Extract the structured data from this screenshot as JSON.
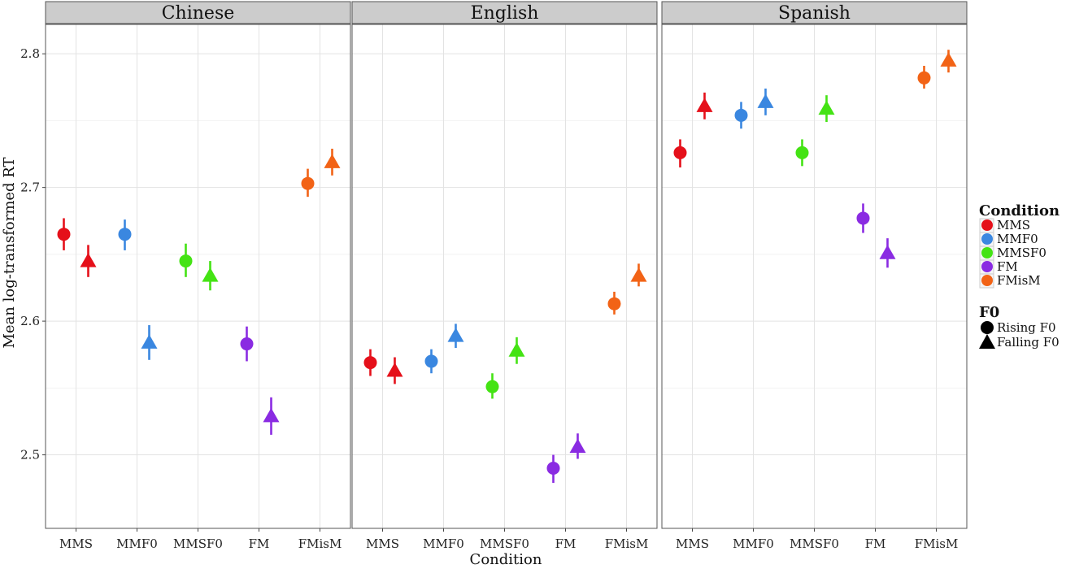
{
  "chart_data": {
    "type": "scatter",
    "xlabel": "Condition",
    "ylabel": "Mean log-transformed RT",
    "ylim": [
      2.445,
      2.822
    ],
    "yticks": [
      2.5,
      2.6,
      2.7,
      2.8
    ],
    "ytick_labels": [
      "2.5",
      "2.6",
      "2.7",
      "2.8"
    ],
    "categories": [
      "MMS",
      "MMF0",
      "MMSF0",
      "FM",
      "FMisM"
    ],
    "grid": true,
    "legend_position": "right",
    "legend": {
      "color_title": "Condition",
      "color_entries": [
        {
          "label": "MMS",
          "color": "#e5101a"
        },
        {
          "label": "MMF0",
          "color": "#3a87e0"
        },
        {
          "label": "MMSF0",
          "color": "#44e314"
        },
        {
          "label": "FM",
          "color": "#8a2be2"
        },
        {
          "label": "FMisM",
          "color": "#f26316"
        }
      ],
      "shape_title": "F0",
      "shape_entries": [
        {
          "label": "Rising F0",
          "shape": "circle"
        },
        {
          "label": "Falling F0",
          "shape": "triangle"
        }
      ]
    },
    "panels": [
      {
        "title": "Chinese",
        "points": [
          {
            "condition": "MMS",
            "f0": "Rising F0",
            "y": 2.665,
            "lo": 2.653,
            "hi": 2.677
          },
          {
            "condition": "MMS",
            "f0": "Falling F0",
            "y": 2.645,
            "lo": 2.633,
            "hi": 2.657
          },
          {
            "condition": "MMF0",
            "f0": "Rising F0",
            "y": 2.665,
            "lo": 2.653,
            "hi": 2.676
          },
          {
            "condition": "MMF0",
            "f0": "Falling F0",
            "y": 2.584,
            "lo": 2.571,
            "hi": 2.597
          },
          {
            "condition": "MMSF0",
            "f0": "Rising F0",
            "y": 2.645,
            "lo": 2.633,
            "hi": 2.658
          },
          {
            "condition": "MMSF0",
            "f0": "Falling F0",
            "y": 2.634,
            "lo": 2.623,
            "hi": 2.645
          },
          {
            "condition": "FM",
            "f0": "Rising F0",
            "y": 2.583,
            "lo": 2.57,
            "hi": 2.596
          },
          {
            "condition": "FM",
            "f0": "Falling F0",
            "y": 2.529,
            "lo": 2.515,
            "hi": 2.543
          },
          {
            "condition": "FMisM",
            "f0": "Rising F0",
            "y": 2.703,
            "lo": 2.693,
            "hi": 2.714
          },
          {
            "condition": "FMisM",
            "f0": "Falling F0",
            "y": 2.719,
            "lo": 2.709,
            "hi": 2.729
          }
        ]
      },
      {
        "title": "English",
        "points": [
          {
            "condition": "MMS",
            "f0": "Rising F0",
            "y": 2.569,
            "lo": 2.559,
            "hi": 2.579
          },
          {
            "condition": "MMS",
            "f0": "Falling F0",
            "y": 2.563,
            "lo": 2.553,
            "hi": 2.573
          },
          {
            "condition": "MMF0",
            "f0": "Rising F0",
            "y": 2.57,
            "lo": 2.561,
            "hi": 2.579
          },
          {
            "condition": "MMF0",
            "f0": "Falling F0",
            "y": 2.589,
            "lo": 2.58,
            "hi": 2.598
          },
          {
            "condition": "MMSF0",
            "f0": "Rising F0",
            "y": 2.551,
            "lo": 2.542,
            "hi": 2.561
          },
          {
            "condition": "MMSF0",
            "f0": "Falling F0",
            "y": 2.578,
            "lo": 2.568,
            "hi": 2.588
          },
          {
            "condition": "FM",
            "f0": "Rising F0",
            "y": 2.49,
            "lo": 2.479,
            "hi": 2.5
          },
          {
            "condition": "FM",
            "f0": "Falling F0",
            "y": 2.506,
            "lo": 2.497,
            "hi": 2.516
          },
          {
            "condition": "FMisM",
            "f0": "Rising F0",
            "y": 2.613,
            "lo": 2.605,
            "hi": 2.622
          },
          {
            "condition": "FMisM",
            "f0": "Falling F0",
            "y": 2.634,
            "lo": 2.626,
            "hi": 2.643
          }
        ]
      },
      {
        "title": "Spanish",
        "points": [
          {
            "condition": "MMS",
            "f0": "Rising F0",
            "y": 2.726,
            "lo": 2.715,
            "hi": 2.736
          },
          {
            "condition": "MMS",
            "f0": "Falling F0",
            "y": 2.761,
            "lo": 2.751,
            "hi": 2.771
          },
          {
            "condition": "MMF0",
            "f0": "Rising F0",
            "y": 2.754,
            "lo": 2.744,
            "hi": 2.764
          },
          {
            "condition": "MMF0",
            "f0": "Falling F0",
            "y": 2.764,
            "lo": 2.754,
            "hi": 2.774
          },
          {
            "condition": "MMSF0",
            "f0": "Rising F0",
            "y": 2.726,
            "lo": 2.716,
            "hi": 2.736
          },
          {
            "condition": "MMSF0",
            "f0": "Falling F0",
            "y": 2.759,
            "lo": 2.749,
            "hi": 2.769
          },
          {
            "condition": "FM",
            "f0": "Rising F0",
            "y": 2.677,
            "lo": 2.666,
            "hi": 2.688
          },
          {
            "condition": "FM",
            "f0": "Falling F0",
            "y": 2.651,
            "lo": 2.64,
            "hi": 2.662
          },
          {
            "condition": "FMisM",
            "f0": "Rising F0",
            "y": 2.782,
            "lo": 2.774,
            "hi": 2.791
          },
          {
            "condition": "FMisM",
            "f0": "Falling F0",
            "y": 2.795,
            "lo": 2.786,
            "hi": 2.803
          }
        ]
      }
    ]
  }
}
